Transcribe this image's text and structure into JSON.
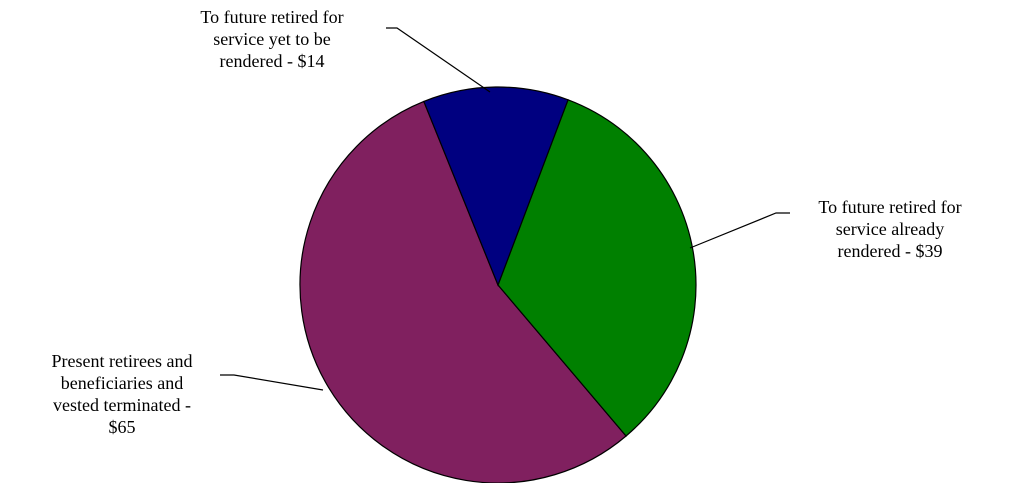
{
  "chart_data": {
    "type": "pie",
    "values": [
      14,
      39,
      65
    ],
    "value_labels": [
      "To future retired for service yet to be rendered - $14",
      "To future retired for service already rendered - $39",
      "Present retirees and beneficiaries and vested terminated - $65"
    ],
    "colors": [
      "#000080",
      "#008000",
      "#80205f"
    ]
  }
}
